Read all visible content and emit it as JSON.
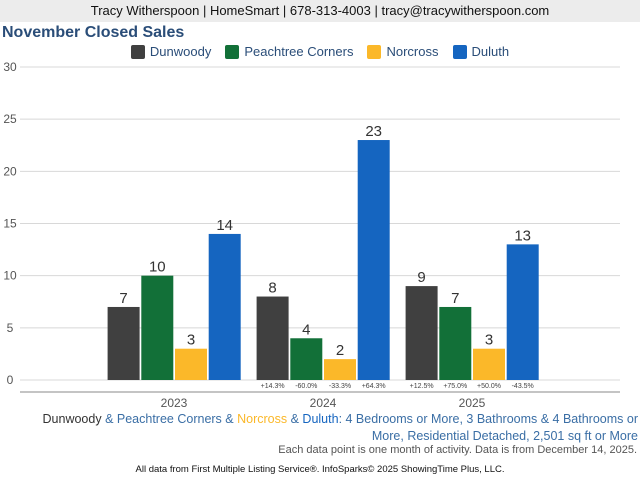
{
  "header": "Tracy Witherspoon | HomeSmart | 678-313-4003 | tracy@tracywitherspoon.com",
  "chart_data": {
    "type": "bar",
    "title": "November Closed Sales",
    "categories": [
      "2023",
      "2024",
      "2025"
    ],
    "series": [
      {
        "name": "Dunwoody",
        "color": "#404040",
        "values": [
          7,
          8,
          9
        ]
      },
      {
        "name": "Peachtree Corners",
        "color": "#127038",
        "values": [
          10,
          4,
          7
        ]
      },
      {
        "name": "Norcross",
        "color": "#fbb829",
        "values": [
          3,
          2,
          3
        ]
      },
      {
        "name": "Duluth",
        "color": "#1565c0",
        "values": [
          14,
          23,
          13
        ]
      }
    ],
    "changes": [
      null,
      [
        "+14.3%",
        "-60.0%",
        "-33.3%",
        "+64.3%"
      ],
      [
        "+12.5%",
        "+75.0%",
        "+50.0%",
        "-43.5%"
      ]
    ],
    "ylim": [
      0,
      30
    ],
    "yticks": [
      "0",
      "5",
      "10",
      "15",
      "20",
      "25",
      "30"
    ],
    "legend": "top-center",
    "grid": true
  },
  "footer": {
    "series_names": [
      "Dunwoody",
      "Peachtree Corners",
      "Norcross",
      "Duluth"
    ],
    "sep": " & ",
    "criteria": ": 4 Bedrooms or More, 3 Bathrooms & 4 Bathrooms or More, Residential Detached, 2,501 sq ft or More",
    "note": "Each data point is one month of activity. Data is from December 14, 2025.",
    "source": "All data from First Multiple Listing Service®. InfoSparks© 2025 ShowingTime Plus, LLC."
  }
}
